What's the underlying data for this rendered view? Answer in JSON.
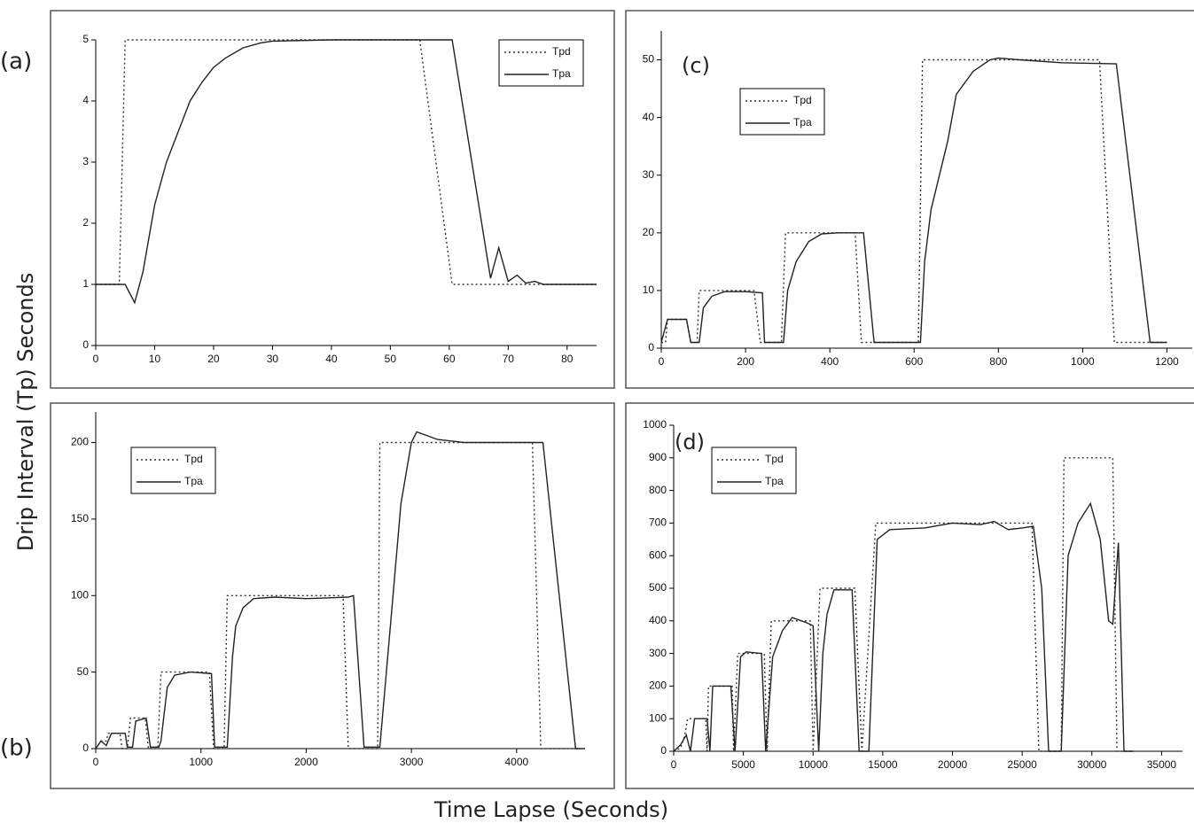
{
  "ylabel": "Drip Interval (Tp) Seconds",
  "xlabel": "Time Lapse (Seconds)",
  "chart_data": [
    {
      "type": "line",
      "label": "(a)",
      "xlim": [
        0,
        85
      ],
      "ylim": [
        0,
        5
      ],
      "xticks": [
        0,
        10,
        20,
        30,
        40,
        50,
        60,
        70,
        80
      ],
      "yticks": [
        0,
        1,
        2,
        3,
        4,
        5
      ],
      "legend": "upper right",
      "series": [
        {
          "name": "Tpd",
          "dash": "dotted",
          "color": "#333333",
          "x": [
            0,
            4,
            5,
            55,
            60.5,
            85
          ],
          "values": [
            1,
            1,
            5,
            5,
            1,
            1
          ]
        },
        {
          "name": "Tpa",
          "dash": "solid",
          "color": "#222222",
          "x": [
            0,
            5,
            6.6,
            8,
            10,
            12,
            14,
            16,
            18,
            20,
            22,
            25,
            28,
            30,
            40,
            50,
            60.5,
            67,
            68.4,
            70,
            71.5,
            73,
            74.5,
            76,
            85
          ],
          "values": [
            1,
            1,
            0.7,
            1.2,
            2.3,
            3.0,
            3.5,
            4.0,
            4.3,
            4.55,
            4.7,
            4.87,
            4.95,
            4.98,
            5,
            5,
            5,
            1.1,
            1.6,
            1.05,
            1.15,
            1.02,
            1.05,
            1,
            1
          ]
        }
      ]
    },
    {
      "type": "line",
      "label": "(c)",
      "xlim": [
        0,
        1260
      ],
      "ylim": [
        0,
        55
      ],
      "xticks": [
        0,
        200,
        400,
        600,
        800,
        1000,
        1200
      ],
      "yticks": [
        0,
        10,
        20,
        30,
        40,
        50
      ],
      "legend": "upper left",
      "series": [
        {
          "name": "Tpd",
          "dash": "dotted",
          "color": "#333333",
          "x": [
            0,
            10,
            15,
            60,
            70,
            85,
            90,
            220,
            235,
            285,
            295,
            460,
            475,
            610,
            620,
            1040,
            1075,
            1200
          ],
          "values": [
            1,
            1,
            5,
            5,
            1,
            1,
            10,
            10,
            1,
            1,
            20,
            20,
            1,
            1,
            50,
            50,
            1,
            1
          ]
        },
        {
          "name": "Tpa",
          "dash": "solid",
          "color": "#222222",
          "x": [
            0,
            15,
            60,
            70,
            90,
            100,
            120,
            150,
            200,
            240,
            245,
            290,
            300,
            320,
            350,
            380,
            420,
            480,
            505,
            615,
            625,
            640,
            680,
            700,
            740,
            780,
            800,
            850,
            950,
            1080,
            1160,
            1200
          ],
          "values": [
            1,
            5,
            5,
            1,
            1,
            7,
            9,
            9.8,
            9.8,
            9.6,
            1,
            1,
            10,
            15,
            18.5,
            19.8,
            20,
            20,
            1,
            1,
            15,
            24,
            36,
            44,
            48,
            50,
            50.3,
            50,
            49.5,
            49.3,
            1,
            1
          ]
        }
      ]
    },
    {
      "type": "line",
      "label": "(b)",
      "xlim": [
        0,
        4650
      ],
      "ylim": [
        0,
        220
      ],
      "xticks": [
        0,
        1000,
        2000,
        3000,
        4000
      ],
      "yticks": [
        0,
        50,
        100,
        150,
        200
      ],
      "legend": "upper left",
      "series": [
        {
          "name": "Tpd",
          "dash": "dotted",
          "color": "#333333",
          "x": [
            0,
            50,
            100,
            120,
            230,
            250,
            300,
            330,
            470,
            500,
            590,
            620,
            1080,
            1120,
            1220,
            1250,
            2350,
            2400,
            2680,
            2700,
            4150,
            4230,
            4600
          ],
          "values": [
            0,
            5,
            5,
            10,
            10,
            0,
            0,
            20,
            20,
            0,
            0,
            50,
            50,
            0,
            0,
            100,
            100,
            0,
            0,
            200,
            200,
            0,
            0
          ]
        },
        {
          "name": "Tpa",
          "dash": "solid",
          "color": "#222222",
          "x": [
            0,
            50,
            100,
            150,
            280,
            300,
            350,
            380,
            480,
            520,
            600,
            620,
            680,
            750,
            900,
            1100,
            1130,
            1250,
            1300,
            1330,
            1400,
            1500,
            1700,
            2000,
            2400,
            2450,
            2550,
            2700,
            2800,
            2900,
            3000,
            3050,
            3250,
            3500,
            4250,
            4560,
            4650
          ],
          "values": [
            0,
            5,
            2,
            10,
            10,
            1,
            1,
            18,
            20,
            1,
            1,
            5,
            40,
            48,
            50,
            49,
            1,
            1,
            60,
            80,
            92,
            98,
            99,
            98,
            99,
            100,
            1,
            1,
            80,
            160,
            200,
            207,
            202,
            200,
            200,
            0,
            0
          ]
        }
      ]
    },
    {
      "type": "line",
      "label": "(d)",
      "xlim": [
        0,
        36500
      ],
      "ylim": [
        0,
        1000
      ],
      "xticks": [
        0,
        5000,
        10000,
        15000,
        20000,
        25000,
        30000,
        35000
      ],
      "yticks": [
        0,
        100,
        200,
        300,
        400,
        500,
        600,
        700,
        800,
        900,
        1000
      ],
      "legend": "upper left",
      "series": [
        {
          "name": "Tpd",
          "dash": "dotted",
          "color": "#333333",
          "x": [
            0,
            500,
            800,
            1000,
            2300,
            2400,
            2500,
            4200,
            4300,
            4600,
            6500,
            6700,
            7000,
            9800,
            10000,
            10500,
            13000,
            13500,
            14500,
            25700,
            26200,
            27800,
            28000,
            31500,
            31800,
            33000
          ],
          "values": [
            0,
            10,
            50,
            100,
            100,
            0,
            200,
            200,
            0,
            300,
            300,
            0,
            400,
            400,
            0,
            500,
            500,
            0,
            700,
            700,
            0,
            0,
            900,
            900,
            0,
            0
          ]
        },
        {
          "name": "Tpa",
          "dash": "solid",
          "color": "#222222",
          "x": [
            0,
            500,
            900,
            1200,
            1500,
            2400,
            2600,
            2800,
            4100,
            4400,
            4800,
            5200,
            6300,
            6600,
            7100,
            7800,
            8500,
            9500,
            10000,
            10400,
            10700,
            11000,
            11500,
            12800,
            13300,
            14000,
            14600,
            15500,
            18000,
            20000,
            22000,
            23000,
            24000,
            25000,
            25800,
            26400,
            26900,
            27800,
            28300,
            29000,
            29900,
            30600,
            31200,
            31500,
            31900,
            32300,
            33000
          ],
          "values": [
            0,
            20,
            50,
            0,
            100,
            100,
            0,
            200,
            200,
            0,
            290,
            305,
            300,
            0,
            290,
            370,
            410,
            395,
            385,
            0,
            300,
            420,
            495,
            495,
            0,
            0,
            650,
            680,
            685,
            700,
            695,
            705,
            680,
            685,
            690,
            500,
            0,
            0,
            600,
            700,
            760,
            650,
            400,
            390,
            640,
            0,
            0
          ]
        }
      ]
    }
  ]
}
